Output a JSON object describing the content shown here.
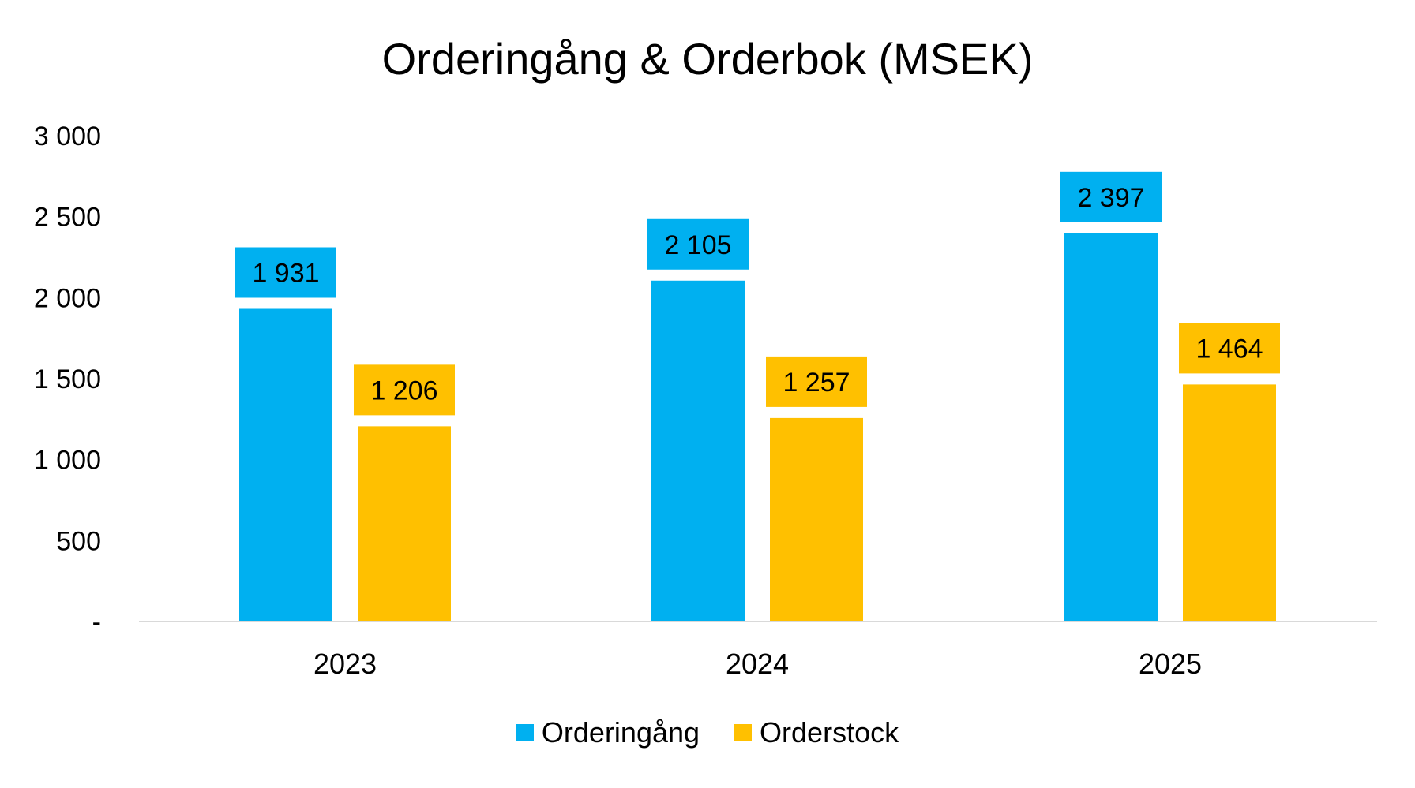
{
  "chart_data": {
    "type": "bar",
    "title": "Orderingång & Orderbok (MSEK)",
    "xlabel": "",
    "ylabel": "",
    "categories": [
      "2023",
      "2024",
      "2025"
    ],
    "series": [
      {
        "name": "Orderingång",
        "color": "#00B0F0",
        "values": [
          1931,
          2105,
          2397
        ],
        "labels": [
          "1 931",
          "2 105",
          "2 397"
        ]
      },
      {
        "name": "Orderstock",
        "color": "#FFC000",
        "values": [
          1206,
          1257,
          1464
        ],
        "labels": [
          "1 206",
          "1 257",
          "1 464"
        ]
      }
    ],
    "ylim": [
      0,
      3000
    ],
    "yticks": [
      0,
      500,
      1000,
      1500,
      2000,
      2500,
      3000
    ],
    "ytick_labels": [
      "-",
      "500",
      "1 000",
      "1 500",
      "2 000",
      "2 500",
      "3 000"
    ],
    "grid": false,
    "legend_position": "bottom"
  }
}
